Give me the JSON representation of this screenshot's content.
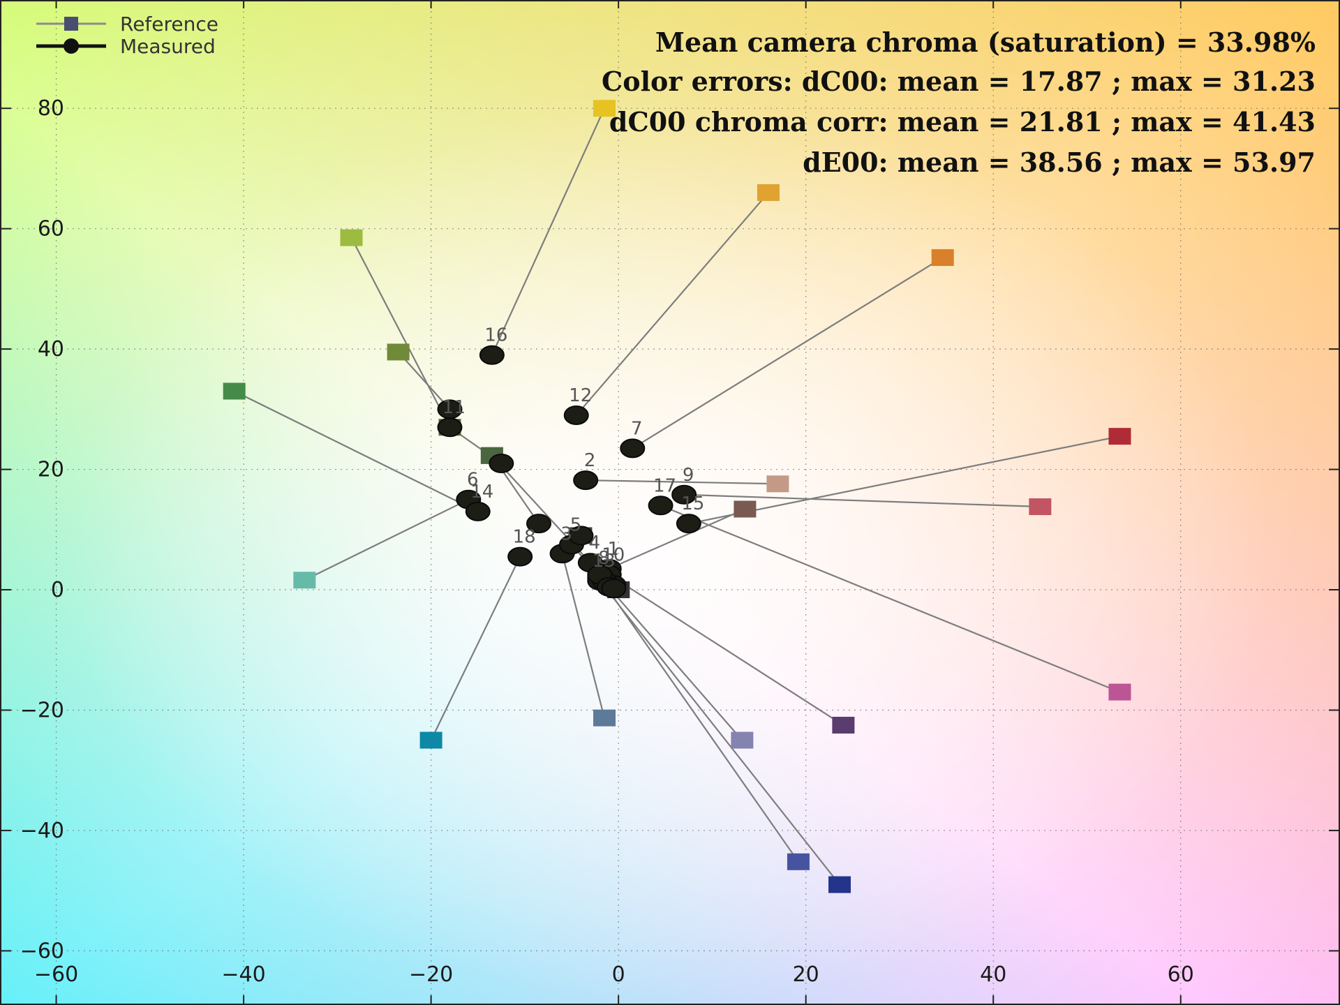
{
  "chart_data": {
    "type": "scatter",
    "title": "",
    "xlabel": "",
    "ylabel": "",
    "xlim": [
      -66,
      77
    ],
    "ylim": [
      -69,
      98
    ],
    "x_ticks": [
      -60,
      -40,
      -20,
      0,
      20,
      40,
      60
    ],
    "y_ticks": [
      -60,
      -40,
      -20,
      0,
      20,
      40,
      60,
      80
    ],
    "grid": true,
    "legend_position": "top-left",
    "legend": [
      {
        "label": "Reference",
        "marker": "square",
        "color": "#4a4e6e"
      },
      {
        "label": "Measured",
        "marker": "circle",
        "color": "#111111"
      }
    ],
    "annotations": [
      "Mean camera chroma (saturation)  = 33.98%",
      "Color errors: dC00: mean = 17.87 ; max = 31.23",
      "dC00 chroma corr: mean = 21.81 ; max = 41.43",
      "dE00: mean = 38.56 ; max = 53.97"
    ],
    "patches": [
      {
        "label": "1",
        "ref": [
          13.5,
          13.4
        ],
        "ref_color": "#7a5a50",
        "meas": [
          -1.0,
          3.5
        ]
      },
      {
        "label": "2",
        "ref": [
          17.0,
          17.6
        ],
        "ref_color": "#c49a86",
        "meas": [
          -3.5,
          18.2
        ]
      },
      {
        "label": "3",
        "ref": [
          -1.5,
          -21.3
        ],
        "ref_color": "#5e7a99",
        "meas": [
          -6.0,
          6.0
        ]
      },
      {
        "label": "4",
        "ref": [
          -13.5,
          22.3
        ],
        "ref_color": "#5b6e44",
        "meas": [
          -3.0,
          4.5
        ]
      },
      {
        "label": "5",
        "ref": [
          13.2,
          -25.0
        ],
        "ref_color": "#8583b0",
        "meas": [
          -5.0,
          7.5
        ]
      },
      {
        "label": "6",
        "ref": [
          -33.5,
          1.6
        ],
        "ref_color": "#66bba8",
        "meas": [
          -16.0,
          15.0
        ]
      },
      {
        "label": "7",
        "ref": [
          34.6,
          55.2
        ],
        "ref_color": "#d8802a",
        "meas": [
          1.5,
          23.5
        ]
      },
      {
        "label": "8",
        "ref": [
          19.2,
          -45.2
        ],
        "ref_color": "#4654a0",
        "meas": [
          -2.0,
          2.0
        ]
      },
      {
        "label": "9",
        "ref": [
          45.0,
          13.8
        ],
        "ref_color": "#c25562",
        "meas": [
          7.0,
          15.8
        ]
      },
      {
        "label": "10",
        "ref": [
          24.0,
          -22.5
        ],
        "ref_color": "#5a3c6e",
        "meas": [
          -1.0,
          2.5
        ]
      },
      {
        "label": "11",
        "ref": [
          -28.5,
          58.5
        ],
        "ref_color": "#9cbb40",
        "meas": [
          -18.0,
          27.0
        ]
      },
      {
        "label": "12",
        "ref": [
          16.0,
          66.0
        ],
        "ref_color": "#e0a230",
        "meas": [
          -4.5,
          29.0
        ]
      },
      {
        "label": "13",
        "ref": [
          23.6,
          -49.0
        ],
        "ref_color": "#24348a",
        "meas": [
          -2.0,
          1.5
        ]
      },
      {
        "label": "14",
        "ref": [
          -41.0,
          33.0
        ],
        "ref_color": "#468a4a",
        "meas": [
          -15.0,
          13.0
        ]
      },
      {
        "label": "15",
        "ref": [
          53.5,
          25.5
        ],
        "ref_color": "#af2c36",
        "meas": [
          7.5,
          11.0
        ]
      },
      {
        "label": "16",
        "ref": [
          -1.5,
          80.0
        ],
        "ref_color": "#e6c322",
        "meas": [
          -13.5,
          39.0
        ]
      },
      {
        "label": "17",
        "ref": [
          53.5,
          -17.0
        ],
        "ref_color": "#bb5595",
        "meas": [
          4.5,
          14.0
        ]
      },
      {
        "label": "18",
        "ref": [
          -20.0,
          -25.0
        ],
        "ref_color": "#0e88a4",
        "meas": [
          -10.5,
          5.5
        ]
      },
      {
        "label": "",
        "ref": [
          0.0,
          0.0
        ],
        "ref_color": "#f2f2f2",
        "meas": [
          -1.0,
          1.0
        ]
      },
      {
        "label": "",
        "ref": [
          0.0,
          0.0
        ],
        "ref_color": "#c8c8c8",
        "meas": [
          -0.5,
          0.8
        ]
      },
      {
        "label": "",
        "ref": [
          0.0,
          0.0
        ],
        "ref_color": "#a0a0a0",
        "meas": [
          -1.5,
          1.5
        ]
      },
      {
        "label": "",
        "ref": [
          0.0,
          0.0
        ],
        "ref_color": "#7a7a7a",
        "meas": [
          -2.0,
          2.5
        ]
      },
      {
        "label": "",
        "ref": [
          0.0,
          0.0
        ],
        "ref_color": "#555555",
        "meas": [
          -1.0,
          0.5
        ]
      },
      {
        "label": "",
        "ref": [
          0.0,
          0.0
        ],
        "ref_color": "#333333",
        "meas": [
          -0.5,
          0.2
        ]
      },
      {
        "label": "",
        "ref": [
          -23.5,
          39.5
        ],
        "ref_color": "#708a3a",
        "meas": [
          -18.0,
          30.0
        ]
      },
      {
        "label": "",
        "ref": [
          -13.5,
          22.3
        ],
        "ref_color": "#4a6640",
        "meas": [
          -8.5,
          11.0
        ]
      },
      {
        "label": "",
        "ref": [
          -18.0,
          27.0
        ],
        "ref_color": "#506a3c",
        "meas": [
          -12.5,
          21.0
        ]
      },
      {
        "label": "",
        "ref": [
          -4.0,
          9.0
        ],
        "ref_color": "#3a4a30",
        "meas": [
          -4.0,
          9.0
        ]
      }
    ]
  }
}
